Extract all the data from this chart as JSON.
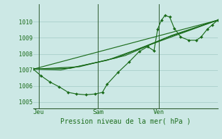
{
  "bg_color": "#cce8e5",
  "grid_color": "#a8ceca",
  "line_color": "#1a6b1a",
  "title": "Pression niveau de la mer( hPa )",
  "x_tick_labels": [
    "Jeu",
    "Sam",
    "Ven"
  ],
  "x_tick_pos": [
    0.03,
    0.35,
    0.68
  ],
  "ylim": [
    1004.6,
    1011.1
  ],
  "yticks": [
    1005,
    1006,
    1007,
    1008,
    1009,
    1010
  ],
  "figsize": [
    3.2,
    2.0
  ],
  "dpi": 100,
  "series_plain": [
    [
      [
        0.0,
        1007.05
      ],
      [
        1.0,
        1010.1
      ]
    ],
    [
      [
        0.0,
        1007.05
      ],
      [
        0.15,
        1007.0
      ],
      [
        0.4,
        1007.6
      ],
      [
        0.7,
        1008.85
      ],
      [
        1.0,
        1010.1
      ]
    ],
    [
      [
        0.0,
        1007.05
      ],
      [
        0.2,
        1007.1
      ],
      [
        0.45,
        1007.75
      ],
      [
        0.72,
        1009.0
      ],
      [
        1.0,
        1010.1
      ]
    ],
    [
      [
        0.0,
        1007.05
      ],
      [
        0.25,
        1007.2
      ],
      [
        0.5,
        1007.9
      ],
      [
        0.75,
        1009.15
      ],
      [
        1.0,
        1010.1
      ]
    ]
  ],
  "series_main": [
    [
      0.0,
      1007.05
    ],
    [
      0.04,
      1006.65
    ],
    [
      0.09,
      1006.25
    ],
    [
      0.14,
      1005.95
    ],
    [
      0.19,
      1005.6
    ],
    [
      0.235,
      1005.5
    ],
    [
      0.285,
      1005.45
    ],
    [
      0.335,
      1005.5
    ],
    [
      0.375,
      1005.6
    ],
    [
      0.4,
      1006.1
    ],
    [
      0.46,
      1006.85
    ],
    [
      0.52,
      1007.5
    ],
    [
      0.575,
      1008.15
    ],
    [
      0.62,
      1008.45
    ],
    [
      0.655,
      1008.2
    ],
    [
      0.675,
      1009.55
    ],
    [
      0.695,
      1010.1
    ],
    [
      0.715,
      1010.4
    ],
    [
      0.74,
      1010.3
    ],
    [
      0.765,
      1009.6
    ],
    [
      0.8,
      1009.05
    ],
    [
      0.845,
      1008.85
    ],
    [
      0.885,
      1008.85
    ],
    [
      0.91,
      1009.05
    ],
    [
      0.945,
      1009.55
    ],
    [
      0.97,
      1009.8
    ],
    [
      1.0,
      1010.1
    ]
  ]
}
